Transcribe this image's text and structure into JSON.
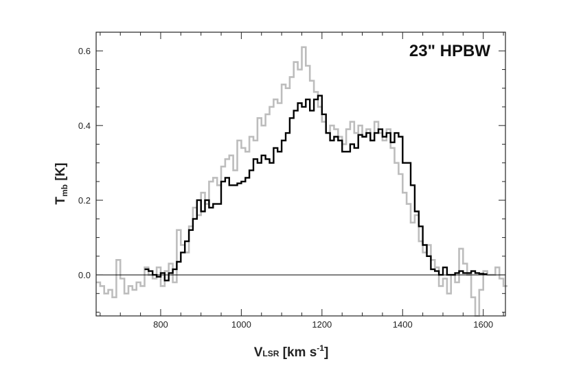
{
  "chart_data": {
    "type": "line",
    "title": "",
    "annotation": "23\" HPBW",
    "xlabel": {
      "main": "V",
      "sub": "LSR",
      "unit": " [km s",
      "sup": "-1",
      "close": "]"
    },
    "ylabel": {
      "main": "T",
      "sub": "mb",
      "unit": " [K]"
    },
    "xlim": [
      640,
      1655
    ],
    "ylim": [
      -0.11,
      0.65
    ],
    "xticks": [
      800,
      1000,
      1200,
      1400,
      1600
    ],
    "xtick_labels": [
      "800",
      "1000",
      "1200",
      "1400",
      "1600"
    ],
    "yticks": [
      0.0,
      0.2,
      0.4,
      0.6
    ],
    "ytick_labels": [
      "0.0",
      "0.2",
      "0.4",
      "0.6"
    ],
    "x_minor_step": 50,
    "y_minor_step": 0.05,
    "zero_line": 0,
    "grid": false,
    "legend": "none",
    "colors": {
      "gray_series": "#bdbdbd",
      "black_series": "#000000",
      "axes": "#222222"
    },
    "series": [
      {
        "style": "step-gray",
        "x": [
          640,
          650,
          660,
          670,
          680,
          690,
          700,
          710,
          720,
          730,
          740,
          750,
          760,
          770,
          780,
          790,
          800,
          810,
          820,
          830,
          840,
          850,
          860,
          870,
          880,
          890,
          900,
          910,
          920,
          930,
          940,
          950,
          960,
          970,
          980,
          990,
          1000,
          1010,
          1020,
          1030,
          1040,
          1050,
          1060,
          1070,
          1080,
          1090,
          1100,
          1110,
          1120,
          1130,
          1140,
          1150,
          1160,
          1170,
          1180,
          1190,
          1200,
          1210,
          1220,
          1230,
          1240,
          1250,
          1260,
          1270,
          1280,
          1290,
          1300,
          1310,
          1320,
          1330,
          1340,
          1350,
          1360,
          1370,
          1380,
          1390,
          1400,
          1410,
          1420,
          1430,
          1440,
          1450,
          1460,
          1470,
          1480,
          1490,
          1500,
          1510,
          1520,
          1530,
          1540,
          1550,
          1560,
          1570,
          1580,
          1590,
          1600,
          1610,
          1620,
          1630,
          1640,
          1650
        ],
        "y": [
          -0.02,
          -0.03,
          -0.05,
          -0.04,
          -0.06,
          0.04,
          -0.01,
          -0.05,
          -0.03,
          -0.04,
          -0.02,
          -0.03,
          0.02,
          0.0,
          -0.01,
          0.02,
          -0.03,
          0.01,
          0.03,
          -0.02,
          0.12,
          0.08,
          0.06,
          0.13,
          0.18,
          0.16,
          0.22,
          0.19,
          0.25,
          0.26,
          0.24,
          0.29,
          0.31,
          0.32,
          0.28,
          0.36,
          0.34,
          0.33,
          0.37,
          0.36,
          0.42,
          0.4,
          0.43,
          0.45,
          0.47,
          0.46,
          0.51,
          0.5,
          0.53,
          0.57,
          0.55,
          0.61,
          0.56,
          0.52,
          0.49,
          0.45,
          0.41,
          0.38,
          0.4,
          0.39,
          0.37,
          0.35,
          0.39,
          0.41,
          0.38,
          0.4,
          0.37,
          0.39,
          0.36,
          0.41,
          0.38,
          0.36,
          0.39,
          0.34,
          0.3,
          0.27,
          0.22,
          0.19,
          0.14,
          0.16,
          0.09,
          0.06,
          0.08,
          0.04,
          0.02,
          -0.03,
          -0.01,
          -0.05,
          0.0,
          -0.02,
          0.07,
          0.03,
          0.0,
          -0.06,
          -0.11,
          -0.04,
          0.01,
          0.0,
          0.0,
          0.02,
          -0.01,
          -0.03
        ]
      },
      {
        "style": "step-black",
        "x": [
          760,
          770,
          780,
          790,
          800,
          810,
          820,
          830,
          840,
          850,
          860,
          870,
          880,
          890,
          900,
          910,
          920,
          930,
          940,
          950,
          960,
          970,
          980,
          990,
          1000,
          1010,
          1020,
          1030,
          1040,
          1050,
          1060,
          1070,
          1080,
          1090,
          1100,
          1110,
          1120,
          1130,
          1140,
          1150,
          1160,
          1170,
          1180,
          1190,
          1200,
          1210,
          1220,
          1230,
          1240,
          1250,
          1260,
          1270,
          1280,
          1290,
          1300,
          1310,
          1320,
          1330,
          1340,
          1350,
          1360,
          1370,
          1380,
          1390,
          1400,
          1410,
          1420,
          1430,
          1440,
          1450,
          1460,
          1470,
          1480,
          1490,
          1500,
          1510,
          1520,
          1530,
          1540,
          1550,
          1560,
          1570,
          1580,
          1590,
          1600
        ],
        "y": [
          0.015,
          0.01,
          0.0,
          -0.005,
          0.005,
          -0.015,
          0.005,
          0.015,
          0.035,
          0.06,
          0.09,
          0.12,
          0.15,
          0.2,
          0.17,
          0.2,
          0.18,
          0.19,
          0.19,
          0.25,
          0.26,
          0.24,
          0.24,
          0.245,
          0.25,
          0.26,
          0.28,
          0.31,
          0.3,
          0.32,
          0.31,
          0.3,
          0.34,
          0.33,
          0.36,
          0.38,
          0.42,
          0.44,
          0.46,
          0.45,
          0.47,
          0.44,
          0.47,
          0.48,
          0.43,
          0.38,
          0.36,
          0.37,
          0.36,
          0.33,
          0.33,
          0.35,
          0.34,
          0.375,
          0.37,
          0.38,
          0.36,
          0.38,
          0.39,
          0.37,
          0.38,
          0.355,
          0.38,
          0.37,
          0.3,
          0.3,
          0.24,
          0.17,
          0.13,
          0.08,
          0.05,
          0.015,
          0.01,
          0.0,
          0.02,
          0.0,
          0.0,
          0.005,
          0.01,
          0.005,
          0.005,
          0.01,
          0.005,
          0.003,
          0.002
        ]
      }
    ]
  }
}
